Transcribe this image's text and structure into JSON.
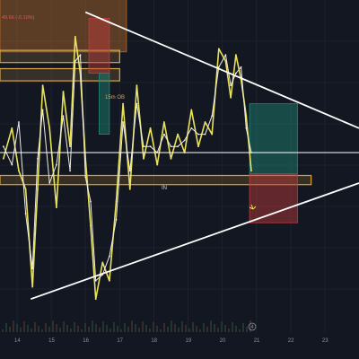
{
  "chart_data": {
    "type": "line",
    "title": "",
    "header_readout": "49.66 (-0.10%)",
    "x_ticks": [
      "14",
      "15",
      "16",
      "17",
      "18",
      "19",
      "20",
      "21",
      "22",
      "23"
    ],
    "x_marker": "4",
    "order_block_label": "15m OB",
    "pattern_label": "IN",
    "xlim": [
      13.5,
      24.0
    ],
    "ylim": [
      0,
      100
    ],
    "grid": true,
    "legend": "none",
    "series": [
      {
        "color": "#e8e25a",
        "x": [
          13.6,
          13.85,
          14.05,
          14.25,
          14.45,
          14.6,
          14.75,
          14.95,
          15.15,
          15.35,
          15.55,
          15.7,
          15.85,
          16.0,
          16.15,
          16.3,
          16.5,
          16.7,
          16.9,
          17.1,
          17.3,
          17.5,
          17.7,
          17.9,
          18.1,
          18.3,
          18.5,
          18.7,
          18.9,
          19.1,
          19.3,
          19.5,
          19.7,
          19.9,
          20.1,
          20.25,
          20.4,
          20.55,
          20.7,
          20.85
        ],
        "values": [
          48,
          58,
          44,
          38,
          6,
          38,
          72,
          58,
          32,
          70,
          52,
          88,
          76,
          48,
          26,
          2,
          14,
          8,
          34,
          66,
          38,
          72,
          48,
          58,
          46,
          60,
          48,
          56,
          50,
          64,
          52,
          60,
          56,
          84,
          80,
          68,
          82,
          74,
          62,
          44
        ]
      },
      {
        "color": "#f0ede6",
        "x": [
          13.6,
          13.85,
          14.05,
          14.25,
          14.45,
          14.6,
          14.75,
          14.95,
          15.15,
          15.35,
          15.55,
          15.7,
          15.85,
          16.0,
          16.15,
          16.3,
          16.5,
          16.7,
          16.9,
          17.1,
          17.3,
          17.5,
          17.7,
          17.9,
          18.1,
          18.3,
          18.5,
          18.7,
          18.9,
          19.1,
          19.3,
          19.5,
          19.7,
          19.9,
          20.1,
          20.25,
          20.4,
          20.55,
          20.7,
          20.85
        ],
        "values": [
          52,
          46,
          60,
          30,
          12,
          48,
          64,
          40,
          46,
          62,
          44,
          80,
          82,
          42,
          34,
          8,
          10,
          16,
          28,
          60,
          44,
          66,
          52,
          52,
          50,
          56,
          52,
          52,
          54,
          58,
          56,
          56,
          62,
          78,
          82,
          72,
          76,
          78,
          58,
          50
        ]
      }
    ],
    "trendlines": [
      {
        "color": "#ffffff",
        "points": [
          [
            14.4,
            2
          ],
          [
            24.0,
            40
          ]
        ]
      },
      {
        "color": "#ffffff",
        "points": [
          [
            16.0,
            96
          ],
          [
            24.0,
            58
          ]
        ]
      }
    ],
    "horizontal_lines": [
      {
        "color": "#ffffff",
        "y": 50
      }
    ],
    "zones": [
      {
        "name": "htf-supply",
        "color": "#b36a2a",
        "x": [
          13.5,
          17.2
        ],
        "y": [
          83,
          120
        ]
      },
      {
        "name": "ob-band-upper",
        "color": "#d8a548",
        "x": [
          13.5,
          17.0
        ],
        "y": [
          79.5,
          83.5
        ]
      },
      {
        "name": "ob-band-15m",
        "color": "#d8a548",
        "x": [
          13.5,
          17.0
        ],
        "y": [
          73.5,
          77.5
        ]
      },
      {
        "name": "ob-band-lower",
        "color": "#e0a030",
        "x": [
          13.5,
          22.6
        ],
        "y": [
          39.5,
          42.5
        ]
      },
      {
        "name": "red-zone-left",
        "color": "#c23b3b",
        "x": [
          16.1,
          16.7
        ],
        "y": [
          76,
          94
        ]
      },
      {
        "name": "green-zone-left",
        "color": "#1f8a78",
        "x": [
          16.4,
          16.7
        ],
        "y": [
          56,
          76
        ]
      },
      {
        "name": "tp-zone",
        "color": "#1f8a78",
        "x": [
          20.8,
          22.2
        ],
        "y": [
          43,
          66
        ]
      },
      {
        "name": "sl-zone",
        "color": "#c23b3b",
        "x": [
          20.8,
          22.2
        ],
        "y": [
          27,
          43
        ]
      }
    ]
  }
}
